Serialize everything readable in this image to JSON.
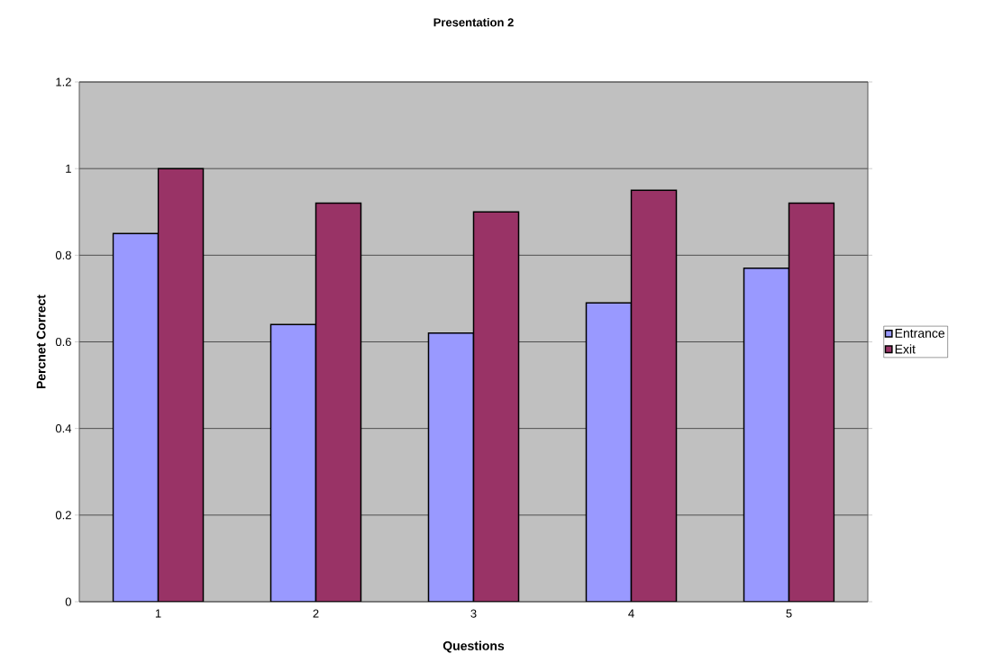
{
  "chart_data": {
    "type": "bar",
    "title": "Presentation 2",
    "xlabel": "Questions",
    "ylabel": "Percnet Correct",
    "categories": [
      "1",
      "2",
      "3",
      "4",
      "5"
    ],
    "series": [
      {
        "name": "Entrance",
        "color": "#9999ff",
        "values": [
          0.85,
          0.64,
          0.62,
          0.69,
          0.77
        ]
      },
      {
        "name": "Exit",
        "color": "#993366",
        "values": [
          1.0,
          0.92,
          0.9,
          0.95,
          0.92
        ]
      }
    ],
    "ylim": [
      0,
      1.2
    ],
    "yticks": [
      0,
      0.2,
      0.4,
      0.6,
      0.8,
      1,
      1.2
    ],
    "grid": "y",
    "legend": "right"
  }
}
